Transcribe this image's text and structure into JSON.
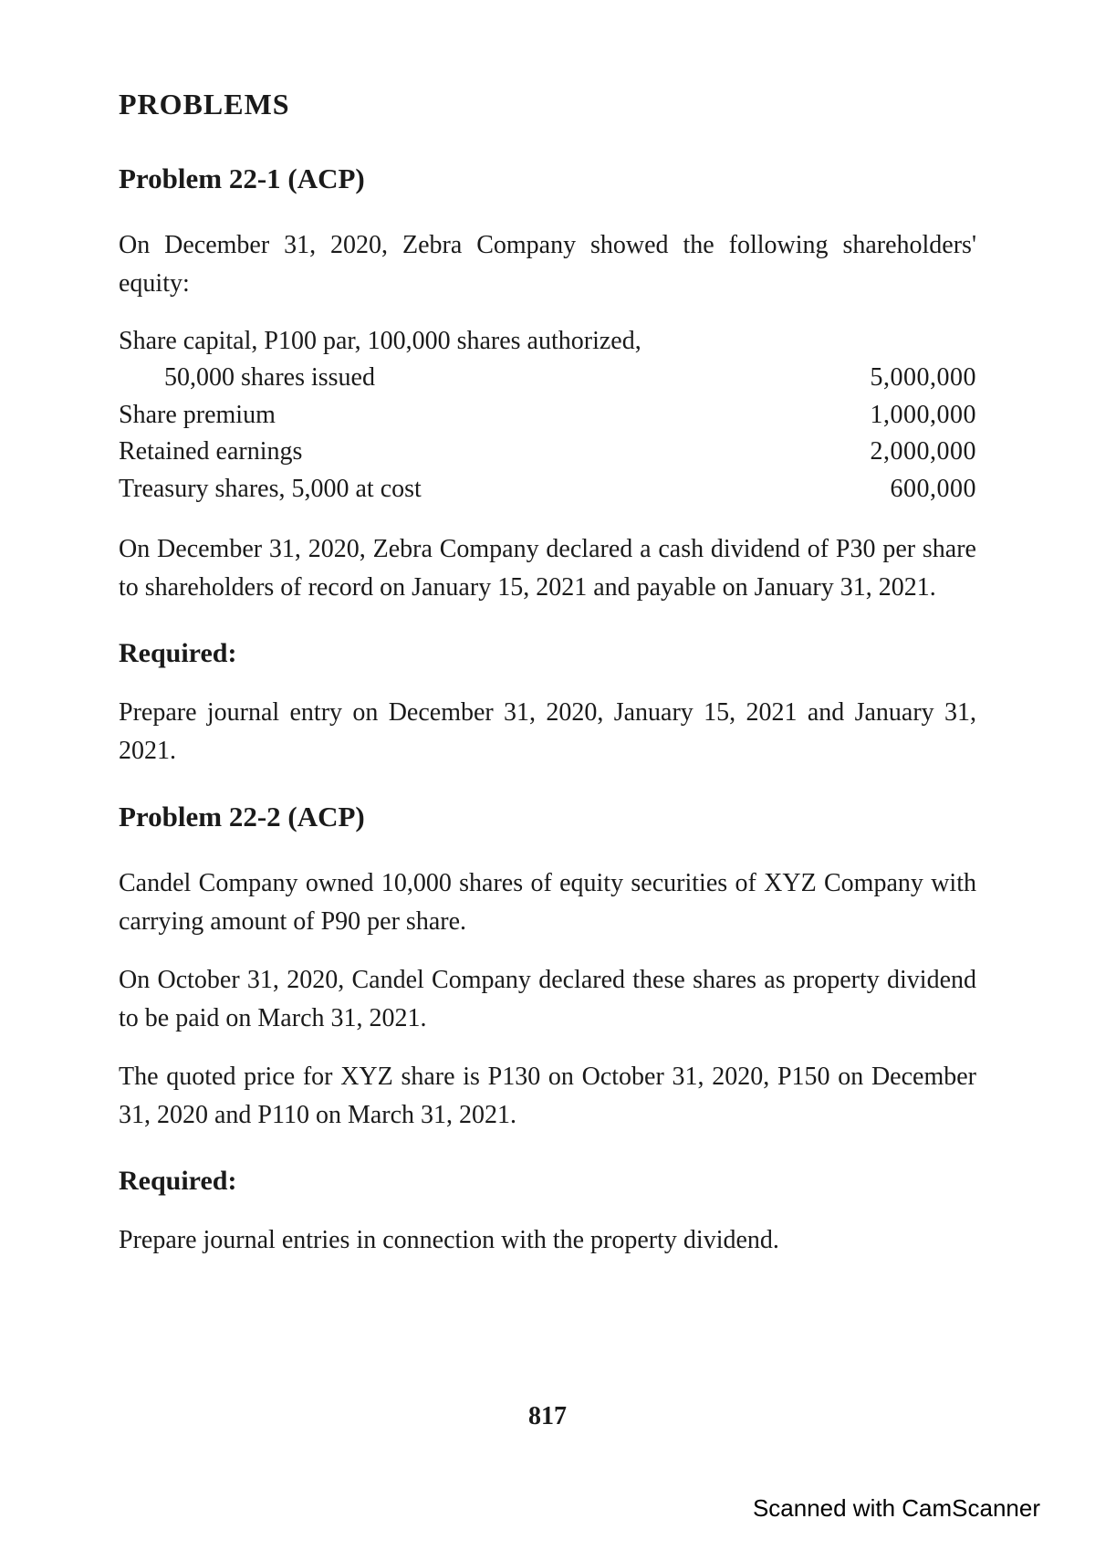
{
  "section_heading": "PROBLEMS",
  "problem1": {
    "title": "Problem 22-1  (ACP)",
    "intro": "On December 31, 2020, Zebra Company showed the following shareholders' equity:",
    "equity": {
      "row1_label_a": "Share capital, P100 par, 100,000 shares authorized,",
      "row1_label_b": "50,000 shares issued",
      "row1_value": "5,000,000",
      "row2_label": "Share premium",
      "row2_value": "1,000,000",
      "row3_label": "Retained earnings",
      "row3_value": "2,000,000",
      "row4_label": "Treasury shares, 5,000 at cost",
      "row4_value": "600,000"
    },
    "para2": "On December 31, 2020, Zebra Company declared a cash dividend of P30 per share to shareholders of record on January 15, 2021 and payable on January 31, 2021.",
    "required_heading": "Required:",
    "required_text": "Prepare journal entry on December 31, 2020, January 15, 2021 and January 31, 2021."
  },
  "problem2": {
    "title": "Problem 22-2  (ACP)",
    "para1": "Candel Company owned 10,000 shares of equity securities of XYZ Company with carrying amount of P90 per share.",
    "para2": "On October 31, 2020, Candel Company declared these shares as property dividend to be paid on March 31, 2021.",
    "para3": "The quoted price for XYZ share is P130 on October 31, 2020, P150 on December 31, 2020 and P110 on March 31, 2021.",
    "required_heading": "Required:",
    "required_text": "Prepare journal entries in connection with the property dividend."
  },
  "page_number": "817",
  "watermark": "Scanned with CamScanner"
}
